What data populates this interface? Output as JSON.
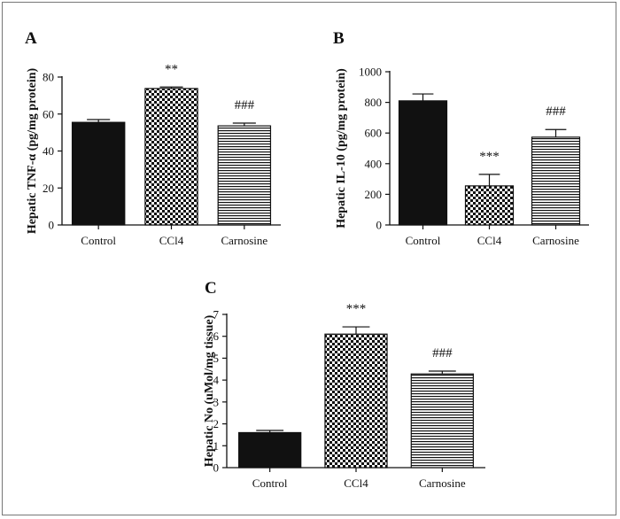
{
  "patterns": {
    "Control": "solid-black",
    "CCl4": "checkerboard",
    "Carnosine": "horizontal-stripes"
  },
  "colors": {
    "ink": "#111111",
    "frame": "#777777",
    "background": "#ffffff"
  },
  "chart_data": [
    {
      "type": "bar",
      "title": "A",
      "xlabel": "",
      "ylabel": "Hepatic TNF-α (pg/mg protein)",
      "categories": [
        "Control",
        "CCl4",
        "Carnosine"
      ],
      "values": [
        55.5,
        73.8,
        53.6
      ],
      "errors": [
        1.5,
        0.8,
        1.5
      ],
      "annotations": [
        "",
        "**",
        "###"
      ],
      "ylim": [
        0,
        80
      ],
      "yticks": [
        0,
        20,
        40,
        60,
        80
      ],
      "grid": false
    },
    {
      "type": "bar",
      "title": "B",
      "xlabel": "",
      "ylabel": "Hepatic IL-10 (pg/mg protein)",
      "categories": [
        "Control",
        "CCl4",
        "Carnosine"
      ],
      "values": [
        810,
        255,
        573
      ],
      "errors": [
        45,
        75,
        50
      ],
      "annotations": [
        "",
        "***",
        "###"
      ],
      "ylim": [
        0,
        1000
      ],
      "yticks": [
        0,
        200,
        400,
        600,
        800,
        1000
      ],
      "grid": false
    },
    {
      "type": "bar",
      "title": "C",
      "xlabel": "",
      "ylabel": "Hepatic No (uMol/mg tissue)",
      "categories": [
        "Control",
        "CCl4",
        "Carnosine"
      ],
      "values": [
        1.6,
        6.1,
        4.28
      ],
      "errors": [
        0.1,
        0.33,
        0.13
      ],
      "annotations": [
        "",
        "***",
        "###"
      ],
      "ylim": [
        0,
        7
      ],
      "yticks": [
        0,
        1,
        2,
        3,
        4,
        5,
        6,
        7
      ],
      "grid": false
    }
  ]
}
